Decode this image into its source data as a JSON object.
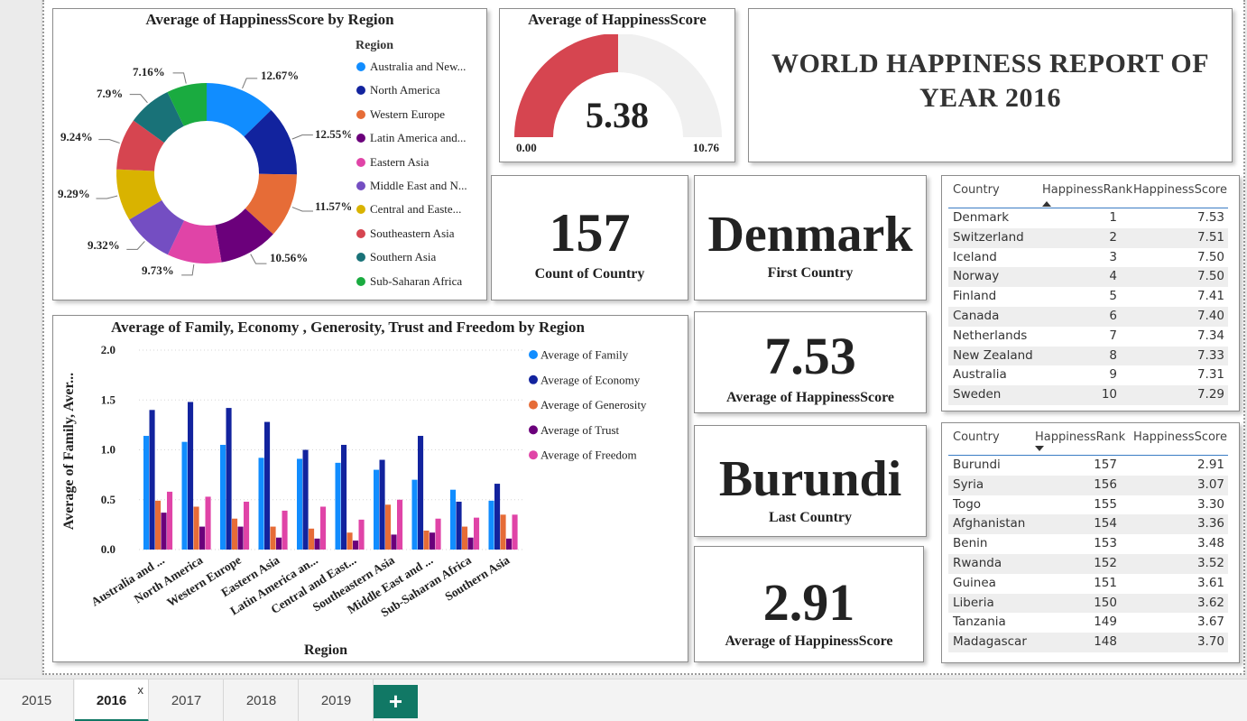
{
  "donut": {
    "title": "Average of HappinessScore by Region",
    "legend_title": "Region",
    "legend": [
      {
        "label": "Australia and New...",
        "color": "#118dff"
      },
      {
        "label": "North America",
        "color": "#12239e"
      },
      {
        "label": "Western Europe",
        "color": "#e66c37"
      },
      {
        "label": "Latin America and...",
        "color": "#6b007b"
      },
      {
        "label": "Eastern Asia",
        "color": "#e044a7"
      },
      {
        "label": "Middle East and N...",
        "color": "#744ec2"
      },
      {
        "label": "Central and Easte...",
        "color": "#d9b300"
      },
      {
        "label": "Southeastern Asia",
        "color": "#d64550"
      },
      {
        "label": "Southern Asia",
        "color": "#197278"
      },
      {
        "label": "Sub-Saharan Africa",
        "color": "#1aab40"
      }
    ]
  },
  "gauge": {
    "title": "Average of HappinessScore",
    "value_label": "5.38",
    "min_label": "0.00",
    "max_label": "10.76"
  },
  "report": {
    "line1": "WORLD HAPPINESS REPORT OF",
    "line2": "YEAR 2016"
  },
  "kpis": {
    "count": {
      "value": "157",
      "label": "Count of Country"
    },
    "first": {
      "value": "Denmark",
      "label": "First Country"
    },
    "first_score": {
      "value": "7.53",
      "label": "Average of HappinessScore"
    },
    "last": {
      "value": "Burundi",
      "label": "Last Country"
    },
    "last_score": {
      "value": "2.91",
      "label": "Average of HappinessScore"
    }
  },
  "top_table": {
    "headers": [
      "Country",
      "HappinessRank",
      "HappinessScore"
    ],
    "rows": [
      [
        "Denmark",
        "1",
        "7.53"
      ],
      [
        "Switzerland",
        "2",
        "7.51"
      ],
      [
        "Iceland",
        "3",
        "7.50"
      ],
      [
        "Norway",
        "4",
        "7.50"
      ],
      [
        "Finland",
        "5",
        "7.41"
      ],
      [
        "Canada",
        "6",
        "7.40"
      ],
      [
        "Netherlands",
        "7",
        "7.34"
      ],
      [
        "New Zealand",
        "8",
        "7.33"
      ],
      [
        "Australia",
        "9",
        "7.31"
      ],
      [
        "Sweden",
        "10",
        "7.29"
      ]
    ]
  },
  "bottom_table": {
    "headers": [
      "Country",
      "HappinessRank",
      "HappinessScore"
    ],
    "rows": [
      [
        "Burundi",
        "157",
        "2.91"
      ],
      [
        "Syria",
        "156",
        "3.07"
      ],
      [
        "Togo",
        "155",
        "3.30"
      ],
      [
        "Afghanistan",
        "154",
        "3.36"
      ],
      [
        "Benin",
        "153",
        "3.48"
      ],
      [
        "Rwanda",
        "152",
        "3.52"
      ],
      [
        "Guinea",
        "151",
        "3.61"
      ],
      [
        "Liberia",
        "150",
        "3.62"
      ],
      [
        "Tanzania",
        "149",
        "3.67"
      ],
      [
        "Madagascar",
        "148",
        "3.70"
      ]
    ]
  },
  "tabs": [
    "2015",
    "2016",
    "2017",
    "2018",
    "2019"
  ],
  "active_tab": "2016",
  "tab_close": "x",
  "tab_add": "+",
  "chart_data": [
    {
      "type": "pie",
      "title": "Average of HappinessScore by Region",
      "legend_title": "Region",
      "legend_position": "right",
      "categories": [
        "Australia and New...",
        "North America",
        "Western Europe",
        "Latin America and...",
        "Eastern Asia",
        "Middle East and N...",
        "Central and Easte...",
        "Southeastern Asia",
        "Southern Asia",
        "Sub-Saharan Africa"
      ],
      "values": [
        12.67,
        12.55,
        11.57,
        10.56,
        9.73,
        9.32,
        9.29,
        9.24,
        7.9,
        7.16
      ],
      "labels": [
        "12.67%",
        "12.55%",
        "11.57%",
        "10.56%",
        "9.73%",
        "9.32%",
        "9.29%",
        "9.24%",
        "7.9%",
        "7.16%"
      ],
      "colors": [
        "#118dff",
        "#12239e",
        "#e66c37",
        "#6b007b",
        "#e044a7",
        "#744ec2",
        "#d9b300",
        "#d64550",
        "#197278",
        "#1aab40"
      ]
    },
    {
      "type": "gauge",
      "title": "Average of HappinessScore",
      "value": 5.38,
      "min": 0.0,
      "max": 10.76,
      "fill_color": "#d64550",
      "track_color": "#f0f0f0"
    },
    {
      "type": "bar",
      "title": "Average of Family, Economy , Generosity, Trust and Freedom by Region",
      "xlabel": "Region",
      "ylabel": "Average of Family, Aver...",
      "ylim": [
        0,
        2.0
      ],
      "yticks": [
        "0.0",
        "0.5",
        "1.0",
        "1.5",
        "2.0"
      ],
      "grid": true,
      "legend_position": "right",
      "categories": [
        "Australia and ...",
        "North America",
        "Western Europe",
        "Eastern Asia",
        "Latin America an...",
        "Central and East...",
        "Southeastern Asia",
        "Middle East and ...",
        "Sub-Saharan Africa",
        "Southern Asia"
      ],
      "series": [
        {
          "name": "Average of Family",
          "color": "#118dff",
          "values": [
            1.14,
            1.08,
            1.05,
            0.92,
            0.91,
            0.87,
            0.8,
            0.7,
            0.6,
            0.49
          ]
        },
        {
          "name": "Average of Economy",
          "color": "#12239e",
          "values": [
            1.4,
            1.48,
            1.42,
            1.28,
            1.0,
            1.05,
            0.9,
            1.14,
            0.48,
            0.66
          ]
        },
        {
          "name": "Average of Generosity",
          "color": "#e66c37",
          "values": [
            0.49,
            0.43,
            0.31,
            0.23,
            0.21,
            0.17,
            0.45,
            0.19,
            0.23,
            0.35
          ]
        },
        {
          "name": "Average of Trust",
          "color": "#6b007b",
          "values": [
            0.37,
            0.23,
            0.23,
            0.12,
            0.11,
            0.09,
            0.15,
            0.17,
            0.12,
            0.11
          ]
        },
        {
          "name": "Average of Freedom",
          "color": "#e044a7",
          "values": [
            0.58,
            0.53,
            0.48,
            0.39,
            0.43,
            0.3,
            0.5,
            0.31,
            0.32,
            0.35
          ]
        }
      ]
    }
  ]
}
